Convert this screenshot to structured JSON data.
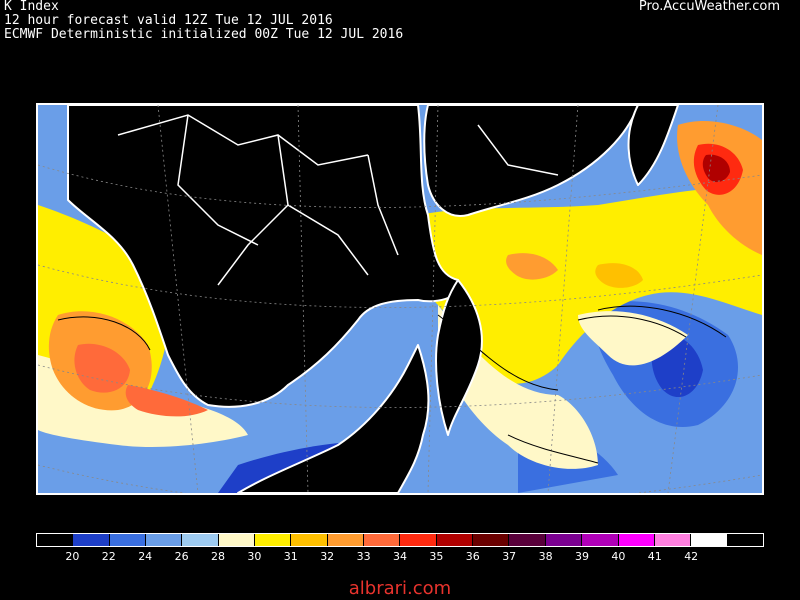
{
  "header": {
    "title": "K Index",
    "line2": "12 hour forecast valid 12Z Tue 12 JUL 2016",
    "line3": "ECMWF Deterministic initialized 00Z Tue 12 JUL 2016",
    "brand": "Pro.AccuWeather.com"
  },
  "legend": {
    "labels": [
      "20",
      "22",
      "24",
      "26",
      "28",
      "30",
      "31",
      "32",
      "33",
      "34",
      "35",
      "36",
      "37",
      "38",
      "39",
      "40",
      "41",
      "42"
    ],
    "colors": [
      "#000000",
      "#1e3fc8",
      "#3a6fe0",
      "#6a9ee8",
      "#9ecbf0",
      "#fff8c8",
      "#ffee00",
      "#ffc000",
      "#ff9c30",
      "#ff6a3a",
      "#ff2a10",
      "#b00000",
      "#6a0000",
      "#58003a",
      "#7a0090",
      "#b000b8",
      "#ff00ff",
      "#ff80e0",
      "#ffffff",
      "#000000"
    ]
  },
  "map": {
    "colors": {
      "background": "#000000",
      "land": "#000000",
      "borders": "#ffffff",
      "contours": "#000000",
      "deep_blue": "#1e3fc8",
      "mid_blue": "#3a6fe0",
      "light_blue": "#6a9ee8",
      "pale_blue": "#9ecbf0",
      "cream": "#fff8c8",
      "yellow": "#ffee00",
      "light_orange": "#ffc000",
      "orange": "#ff9c30",
      "red_orange": "#ff6a3a",
      "red": "#ff2a10",
      "dark_red": "#b00000"
    }
  },
  "watermark": "albrari.com"
}
